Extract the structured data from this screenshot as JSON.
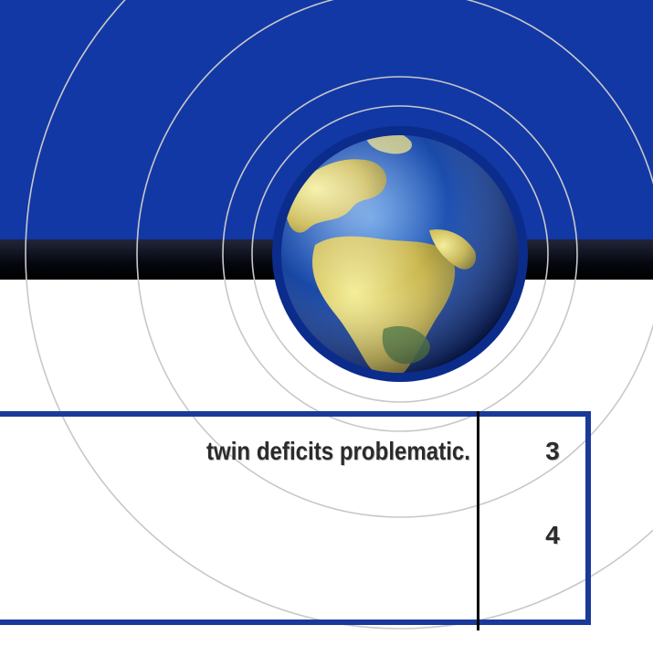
{
  "slide": {
    "table": {
      "rows": [
        {
          "text": "twin deficits problematic.",
          "number": "3"
        },
        {
          "text": "",
          "number": "4"
        }
      ]
    },
    "colors": {
      "header_blue": "#1238a6",
      "frame_blue": "#1a3a9a",
      "dark_bar": "#000000",
      "circle_lines": "#c8c8c8"
    },
    "icons": {
      "globe": "globe-icon"
    }
  }
}
